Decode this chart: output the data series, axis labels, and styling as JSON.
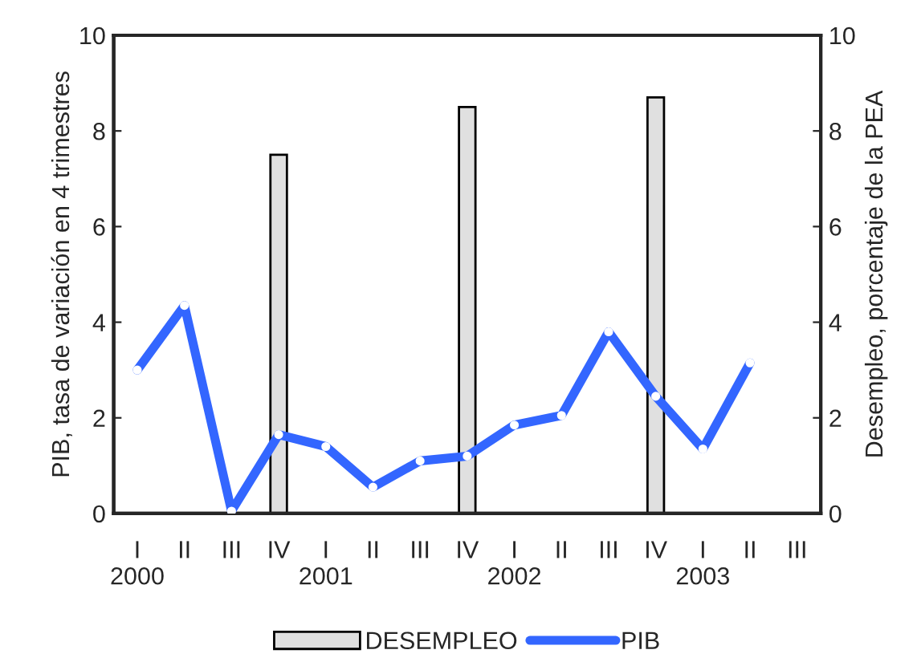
{
  "chart_data": {
    "type": "line",
    "ylabel": "PIB, tasa de variación en 4 trimestres",
    "y2label": "Desempleo, porcentaje de la PEA",
    "categories": [
      "I\n2000",
      "II",
      "III",
      "IV",
      "I\n2001",
      "II",
      "III",
      "IV",
      "I\n2002",
      "II",
      "III",
      "IV",
      "I\n2003",
      "II",
      "III"
    ],
    "series": [
      {
        "name": "DESEMPLEO",
        "type": "bar",
        "axis": "y2",
        "color": "#e0e0e0",
        "values": [
          null,
          null,
          null,
          7.5,
          null,
          null,
          null,
          8.5,
          null,
          null,
          null,
          8.7,
          null,
          null,
          null
        ]
      },
      {
        "name": "PIB",
        "color": "#3366ff",
        "values": [
          3.0,
          4.35,
          0.05,
          1.65,
          1.4,
          0.55,
          1.1,
          1.2,
          1.85,
          2.05,
          3.8,
          2.45,
          1.35,
          3.15,
          null
        ]
      }
    ],
    "ylim": [
      0,
      10
    ],
    "yticks": [
      0,
      2,
      4,
      6,
      8,
      10
    ],
    "y2lim": [
      0,
      10
    ],
    "y2ticks": [
      0,
      2,
      4,
      6,
      8,
      10
    ],
    "grid": false,
    "legend": "bottom",
    "marker": "circle",
    "line_style": "solid"
  }
}
